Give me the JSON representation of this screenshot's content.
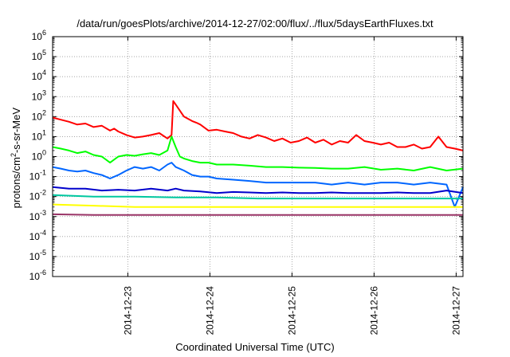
{
  "chart_data": {
    "type": "line",
    "title": "/data/run/goesPlots/archive/2014-12-27/02:00/flux/../flux/5daysEarthFluxes.txt",
    "xlabel": "Coordinated Universal Time (UTC)",
    "ylabel": "protons/cm²-s-sr-MeV",
    "ylabel_parts": [
      "protons/cm",
      "2",
      "-s-sr-MeV"
    ],
    "y_scale": "log",
    "ylim": [
      1e-06,
      1000000.0
    ],
    "y_tick_exponents": [
      -6,
      -5,
      -4,
      -3,
      -2,
      -1,
      0,
      1,
      2,
      3,
      4,
      5,
      6
    ],
    "y_tick_mantissa": "10",
    "x_ticks": [
      "2014-12-23",
      "2014-12-24",
      "2014-12-25",
      "2014-12-26",
      "2014-12-27"
    ],
    "x_range": [
      "2014-12-22T02:00",
      "2014-12-27T02:00"
    ],
    "grid": true,
    "series": [
      {
        "color": "#ff0000",
        "x": [
          0.0,
          0.1,
          0.2,
          0.3,
          0.4,
          0.5,
          0.6,
          0.7,
          0.75,
          0.8,
          0.9,
          1.0,
          1.1,
          1.2,
          1.3,
          1.4,
          1.45,
          1.47,
          1.5,
          1.55,
          1.6,
          1.7,
          1.75,
          1.8,
          1.9,
          2.0,
          2.1,
          2.2,
          2.3,
          2.4,
          2.5,
          2.6,
          2.7,
          2.8,
          2.9,
          3.0,
          3.1,
          3.2,
          3.3,
          3.4,
          3.5,
          3.6,
          3.7,
          3.8,
          3.9,
          4.0,
          4.1,
          4.2,
          4.3,
          4.4,
          4.5,
          4.6,
          4.7,
          4.8,
          4.9,
          5.0
        ],
        "y": [
          90,
          70,
          55,
          40,
          45,
          30,
          35,
          20,
          25,
          18,
          12,
          9,
          10,
          12,
          15,
          8,
          12,
          600,
          400,
          200,
          100,
          60,
          50,
          40,
          20,
          22,
          18,
          15,
          10,
          8,
          12,
          9,
          6,
          8,
          5,
          6,
          9,
          5,
          7,
          4,
          6,
          5,
          12,
          6,
          5,
          4,
          5,
          3,
          3,
          4,
          2.5,
          3,
          10,
          3,
          2.5,
          2
        ]
      },
      {
        "color": "#00ff00",
        "x": [
          0.0,
          0.1,
          0.2,
          0.3,
          0.4,
          0.5,
          0.6,
          0.7,
          0.8,
          0.9,
          1.0,
          1.1,
          1.2,
          1.3,
          1.4,
          1.45,
          1.5,
          1.55,
          1.6,
          1.7,
          1.8,
          1.9,
          2.0,
          2.2,
          2.4,
          2.6,
          2.8,
          3.0,
          3.2,
          3.4,
          3.6,
          3.8,
          4.0,
          4.2,
          4.4,
          4.6,
          4.8,
          5.0
        ],
        "y": [
          3,
          2.5,
          2,
          1.5,
          1.8,
          1.2,
          1,
          0.5,
          1,
          1.2,
          1.1,
          1.3,
          1.5,
          1.2,
          2,
          10,
          3,
          1,
          0.8,
          0.6,
          0.5,
          0.5,
          0.4,
          0.4,
          0.35,
          0.3,
          0.3,
          0.28,
          0.27,
          0.25,
          0.25,
          0.3,
          0.22,
          0.25,
          0.2,
          0.3,
          0.2,
          0.25
        ]
      },
      {
        "color": "#0066ff",
        "x": [
          0.0,
          0.1,
          0.2,
          0.3,
          0.4,
          0.5,
          0.6,
          0.7,
          0.8,
          0.9,
          1.0,
          1.1,
          1.2,
          1.3,
          1.4,
          1.45,
          1.5,
          1.6,
          1.7,
          1.8,
          1.9,
          2.0,
          2.2,
          2.4,
          2.6,
          2.8,
          3.0,
          3.2,
          3.4,
          3.6,
          3.8,
          4.0,
          4.2,
          4.4,
          4.6,
          4.8,
          4.9,
          5.0
        ],
        "y": [
          0.3,
          0.25,
          0.2,
          0.18,
          0.2,
          0.15,
          0.12,
          0.08,
          0.12,
          0.2,
          0.3,
          0.25,
          0.3,
          0.2,
          0.4,
          0.5,
          0.3,
          0.2,
          0.12,
          0.1,
          0.1,
          0.08,
          0.07,
          0.06,
          0.05,
          0.05,
          0.05,
          0.05,
          0.04,
          0.05,
          0.04,
          0.05,
          0.05,
          0.04,
          0.05,
          0.04,
          0.003,
          0.03
        ]
      },
      {
        "color": "#0000cc",
        "x": [
          0.0,
          0.2,
          0.4,
          0.6,
          0.8,
          1.0,
          1.2,
          1.4,
          1.5,
          1.6,
          1.8,
          2.0,
          2.2,
          2.4,
          2.6,
          2.8,
          3.0,
          3.2,
          3.4,
          3.6,
          3.8,
          4.0,
          4.2,
          4.4,
          4.6,
          4.8,
          5.0
        ],
        "y": [
          0.03,
          0.025,
          0.025,
          0.02,
          0.022,
          0.02,
          0.025,
          0.02,
          0.025,
          0.02,
          0.018,
          0.015,
          0.017,
          0.016,
          0.015,
          0.016,
          0.015,
          0.015,
          0.016,
          0.015,
          0.015,
          0.015,
          0.016,
          0.015,
          0.015,
          0.02,
          0.015
        ]
      },
      {
        "color": "#00c8a0",
        "x": [
          0.0,
          0.5,
          1.0,
          1.5,
          2.0,
          2.5,
          3.0,
          3.5,
          4.0,
          4.5,
          5.0
        ],
        "y": [
          0.012,
          0.01,
          0.01,
          0.009,
          0.009,
          0.008,
          0.008,
          0.008,
          0.008,
          0.008,
          0.008
        ]
      },
      {
        "color": "#ffff00",
        "x": [
          0.0,
          0.5,
          1.0,
          1.5,
          2.0,
          2.5,
          3.0,
          3.5,
          4.0,
          4.5,
          5.0
        ],
        "y": [
          0.004,
          0.0035,
          0.003,
          0.003,
          0.003,
          0.003,
          0.003,
          0.003,
          0.003,
          0.003,
          0.003
        ]
      },
      {
        "color": "#993366",
        "x": [
          0.0,
          0.5,
          1.0,
          1.5,
          2.0,
          2.5,
          3.0,
          3.5,
          4.0,
          4.5,
          5.0
        ],
        "y": [
          0.0013,
          0.0012,
          0.0012,
          0.0012,
          0.0012,
          0.0012,
          0.0012,
          0.0012,
          0.0012,
          0.0012,
          0.0012
        ]
      }
    ]
  }
}
